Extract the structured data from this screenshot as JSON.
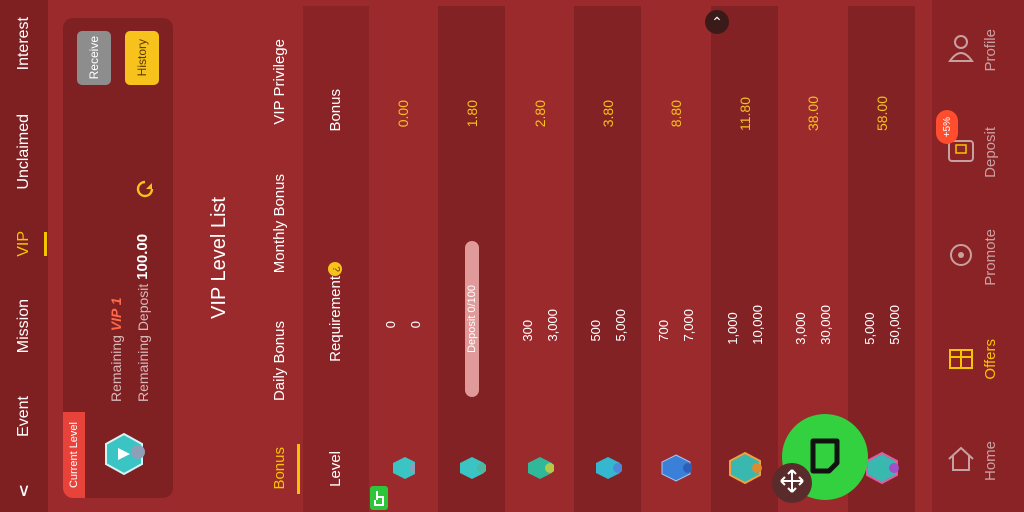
{
  "top_nav": {
    "items": [
      "Interest",
      "Unclaimed",
      "VIP",
      "Mission",
      "Event"
    ],
    "active": "VIP"
  },
  "current_level": {
    "tag": "Current Level",
    "level_badge": "0",
    "remaining_prefix": "Remaining",
    "remaining_vip": "VIP 1",
    "deposit_label": "Remaining Deposit",
    "deposit_amount": "100.00",
    "receive_button": "Receive",
    "history_button": "History"
  },
  "vip_list": {
    "title": "VIP Level List",
    "tabs": [
      "Bonus",
      "Daily Bonus",
      "Monthly Bonus",
      "VIP Privilege"
    ],
    "active_tab": "Bonus",
    "headers": {
      "level": "Level",
      "requirement": "Requirement",
      "bonus": "Bonus"
    },
    "requirement_help": "?",
    "progress_text": "Deposit 0/100",
    "rows": [
      {
        "level": "0",
        "req1": "0",
        "req2": "0",
        "bonus": "0.00"
      },
      {
        "level": "1",
        "req1": "",
        "req2": "",
        "bonus": "1.80"
      },
      {
        "level": "2",
        "req1": "300",
        "req2": "3,000",
        "bonus": "2.80"
      },
      {
        "level": "3",
        "req1": "500",
        "req2": "5,000",
        "bonus": "3.80"
      },
      {
        "level": "4",
        "req1": "700",
        "req2": "7,000",
        "bonus": "8.80"
      },
      {
        "level": "5",
        "req1": "1,000",
        "req2": "10,000",
        "bonus": "11.80"
      },
      {
        "level": "6",
        "req1": "3,000",
        "req2": "30,000",
        "bonus": "38.00"
      },
      {
        "level": "7",
        "req1": "5,000",
        "req2": "50,000",
        "bonus": "58.00"
      }
    ]
  },
  "bottom_nav": {
    "items": [
      "Profile",
      "Deposit",
      "Promote",
      "Offers",
      "Home"
    ],
    "active": "Offers",
    "deposit_badge": "+5%"
  },
  "colors": {
    "accent": "#f5c400",
    "background": "#9b2a2d",
    "fab": "#33d13f"
  }
}
